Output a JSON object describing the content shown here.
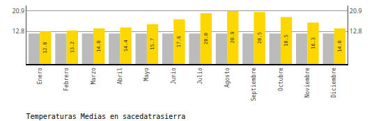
{
  "chart_data": {
    "type": "bar",
    "title": "Temperaturas Medias en sacedatrasierra",
    "categories": [
      "Enero",
      "Febrero",
      "Marzo",
      "Abril",
      "Mayo",
      "Junio",
      "Julio",
      "Agosto",
      "Septiembre",
      "Octubre",
      "Noviembre",
      "Diciembre"
    ],
    "series": [
      {
        "color": "#BBBBBB",
        "values": [
          12.0,
          12.0,
          12.0,
          12.0,
          12.0,
          12.0,
          12.0,
          12.0,
          12.0,
          12.0,
          12.0,
          12.0
        ]
      },
      {
        "color": "#FFD700",
        "values": [
          12.8,
          13.2,
          14.0,
          14.4,
          15.7,
          17.6,
          20.0,
          20.9,
          20.5,
          18.5,
          16.3,
          14.0
        ],
        "data_labels": true,
        "value_labels": [
          "12.8",
          "13.2",
          "14.0",
          "14.4",
          "15.7",
          "17.6",
          "20.0",
          "20.9",
          "20.5",
          "18.5",
          "16.3",
          "14.0"
        ]
      }
    ],
    "ylim": [
      0,
      23.0
    ],
    "yticks": [
      12.8,
      20.9
    ],
    "y2lim": [
      0,
      23.0
    ],
    "y2ticks": [
      12.8,
      20.9
    ],
    "grid": true
  }
}
